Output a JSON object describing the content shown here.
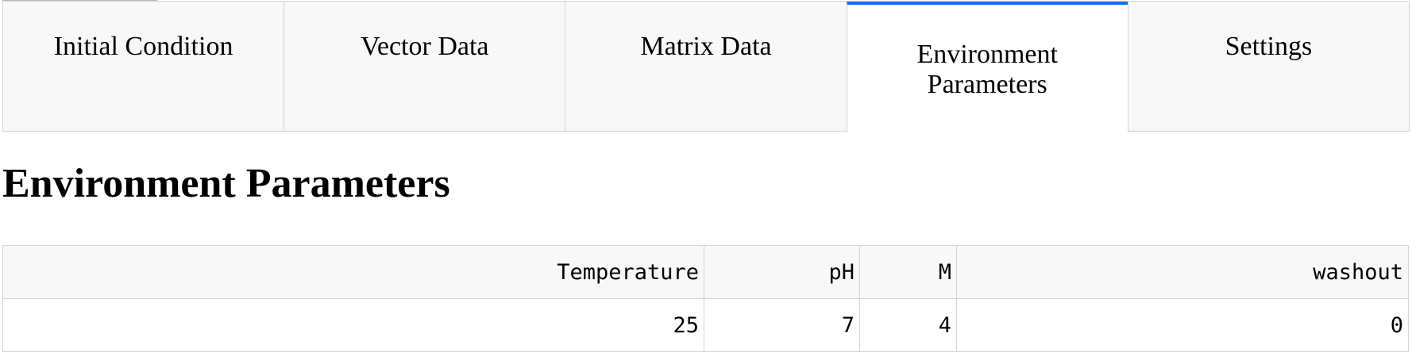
{
  "tabs": [
    {
      "label": "Initial Condition",
      "active": false
    },
    {
      "label": "Vector Data",
      "active": false
    },
    {
      "label": "Matrix Data",
      "active": false
    },
    {
      "label": "Environment Parameters",
      "active": true
    },
    {
      "label": "Settings",
      "active": false
    }
  ],
  "page": {
    "title": "Environment Parameters"
  },
  "table": {
    "headers": [
      "Temperature",
      "pH",
      "M",
      "washout"
    ],
    "rows": [
      [
        "25",
        "7",
        "4",
        "0"
      ]
    ]
  },
  "colors": {
    "active_tab_accent": "#1a73e8",
    "border": "#d4d4d4",
    "tab_background": "#f8f8f8"
  }
}
